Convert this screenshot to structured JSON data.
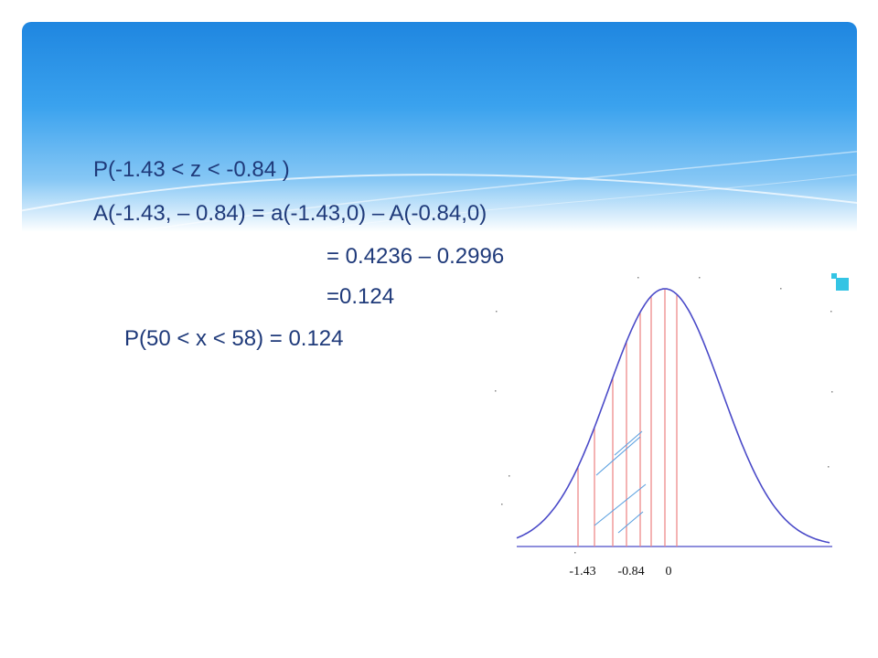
{
  "slide": {
    "lines": [
      "P(-1.43 < z < -0.84 )",
      "A(-1.43, – 0.84) = a(-1.43,0) – A(-0.84,0)",
      "= 0.4236 – 0.2996",
      "=0.124",
      "P(50 < x < 58) = 0.124"
    ]
  },
  "figure": {
    "tick_labels": [
      "-1.43",
      "-0.84",
      "0"
    ],
    "colors": {
      "curve": "#4a4ac8",
      "verticals": "#ee8a8a",
      "hatch": "#5aa0e0",
      "text": "#1f3a7a"
    }
  }
}
